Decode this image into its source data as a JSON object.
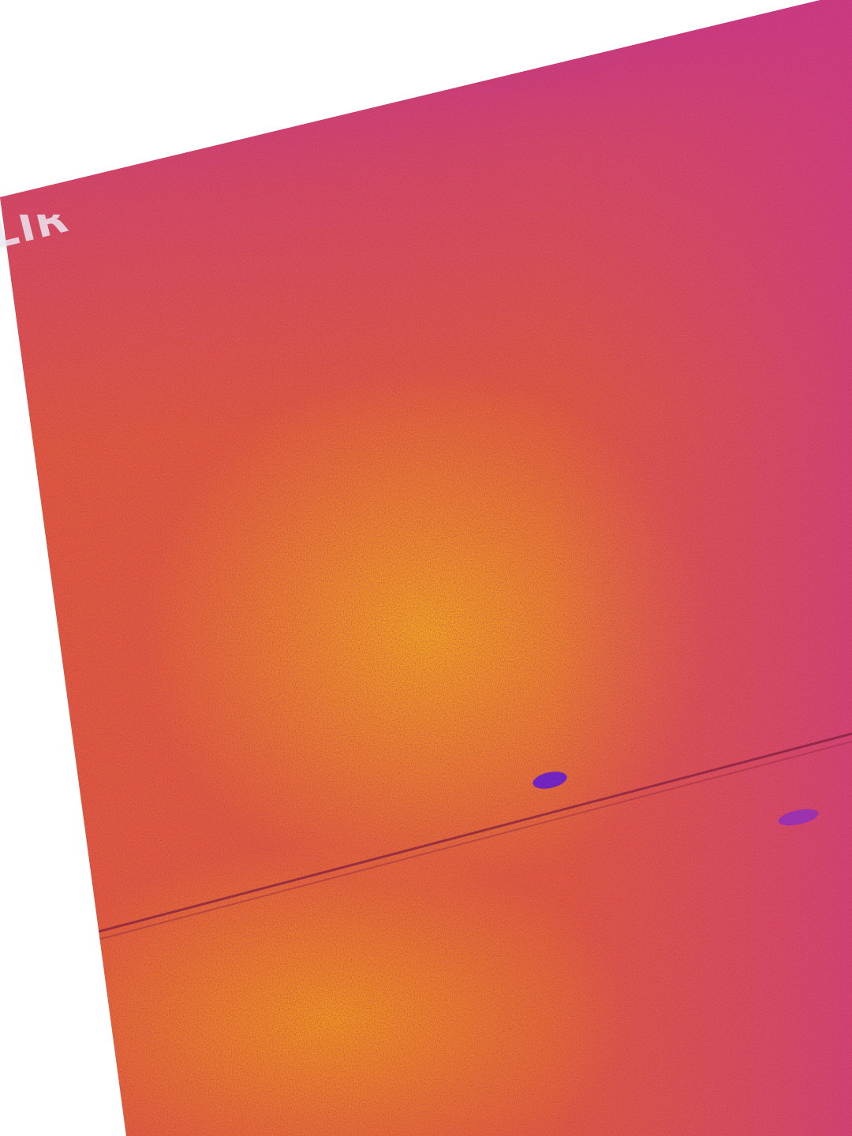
{
  "image": {
    "description_colors": {
      "background": "#ffffff",
      "cool": "#c22aa8",
      "mid": "#e85a3a",
      "warm": "#f08a1c",
      "hot": "#f6a21e",
      "cold_spot": "#6a1fd0"
    }
  },
  "watermark": {
    "text": "FLIR"
  }
}
